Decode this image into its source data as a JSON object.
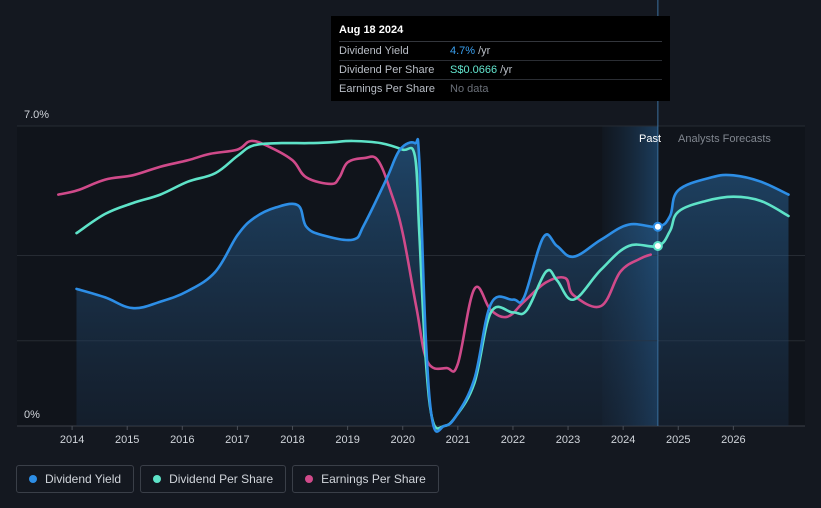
{
  "tooltip": {
    "date": "Aug 18 2024",
    "rows": [
      {
        "label": "Dividend Yield",
        "value": "4.7%",
        "unit": "/yr"
      },
      {
        "label": "Dividend Per Share",
        "value": "S$0.0666",
        "unit": "/yr"
      },
      {
        "label": "Earnings Per Share",
        "value": "No data",
        "unit": ""
      }
    ]
  },
  "regions": {
    "past": "Past",
    "forecast": "Analysts Forecasts"
  },
  "legend": [
    {
      "label": "Dividend Yield",
      "color": "#2d8ee6"
    },
    {
      "label": "Dividend Per Share",
      "color": "#5ee3c8"
    },
    {
      "label": "Earnings Per Share",
      "color": "#d04a8a"
    }
  ],
  "chart_data": {
    "type": "line",
    "y_tick_labels": [
      "7.0%",
      "0%"
    ],
    "ylim": [
      0,
      7.0
    ],
    "x_ticks": [
      "2014",
      "2015",
      "2016",
      "2017",
      "2018",
      "2019",
      "2020",
      "2021",
      "2022",
      "2023",
      "2024",
      "2025",
      "2026"
    ],
    "xlim": [
      2013.0,
      2027.3
    ],
    "forecast_start": 2024.63,
    "forecast_band_start": 2023.62,
    "grid": true,
    "series": [
      {
        "name": "Dividend Yield",
        "color": "#2d8ee6",
        "area": true,
        "points": [
          [
            2014.08,
            3.2
          ],
          [
            2014.6,
            3.0
          ],
          [
            2015.1,
            2.75
          ],
          [
            2015.6,
            2.9
          ],
          [
            2016.1,
            3.15
          ],
          [
            2016.6,
            3.6
          ],
          [
            2017.0,
            4.45
          ],
          [
            2017.3,
            4.85
          ],
          [
            2017.7,
            5.1
          ],
          [
            2018.1,
            5.15
          ],
          [
            2018.25,
            4.65
          ],
          [
            2018.55,
            4.45
          ],
          [
            2019.1,
            4.35
          ],
          [
            2019.3,
            4.7
          ],
          [
            2019.7,
            5.75
          ],
          [
            2019.95,
            6.45
          ],
          [
            2020.22,
            6.6
          ],
          [
            2020.3,
            6.2
          ],
          [
            2020.42,
            2.0
          ],
          [
            2020.55,
            0.05
          ],
          [
            2020.75,
            0.0
          ],
          [
            2020.95,
            0.2
          ],
          [
            2021.3,
            1.1
          ],
          [
            2021.6,
            2.85
          ],
          [
            2022.0,
            2.95
          ],
          [
            2022.2,
            3.0
          ],
          [
            2022.55,
            4.4
          ],
          [
            2022.8,
            4.2
          ],
          [
            2023.1,
            3.95
          ],
          [
            2023.6,
            4.35
          ],
          [
            2024.1,
            4.7
          ],
          [
            2024.63,
            4.65
          ],
          [
            2024.85,
            4.9
          ],
          [
            2025.0,
            5.5
          ],
          [
            2025.6,
            5.8
          ],
          [
            2026.0,
            5.85
          ],
          [
            2026.5,
            5.7
          ],
          [
            2027.0,
            5.4
          ]
        ]
      },
      {
        "name": "Dividend Per Share",
        "color": "#5ee3c8",
        "area": false,
        "points": [
          [
            2014.08,
            4.5
          ],
          [
            2014.6,
            4.95
          ],
          [
            2015.1,
            5.2
          ],
          [
            2015.6,
            5.4
          ],
          [
            2016.1,
            5.7
          ],
          [
            2016.6,
            5.9
          ],
          [
            2017.0,
            6.3
          ],
          [
            2017.3,
            6.55
          ],
          [
            2017.8,
            6.6
          ],
          [
            2018.3,
            6.6
          ],
          [
            2018.7,
            6.62
          ],
          [
            2019.1,
            6.65
          ],
          [
            2019.6,
            6.6
          ],
          [
            2020.0,
            6.45
          ],
          [
            2020.22,
            6.3
          ],
          [
            2020.3,
            4.5
          ],
          [
            2020.42,
            1.5
          ],
          [
            2020.55,
            0.1
          ],
          [
            2020.75,
            0.0
          ],
          [
            2020.95,
            0.2
          ],
          [
            2021.3,
            1.0
          ],
          [
            2021.6,
            2.65
          ],
          [
            2022.0,
            2.65
          ],
          [
            2022.25,
            2.7
          ],
          [
            2022.6,
            3.6
          ],
          [
            2022.8,
            3.4
          ],
          [
            2023.1,
            2.95
          ],
          [
            2023.6,
            3.65
          ],
          [
            2024.1,
            4.2
          ],
          [
            2024.63,
            4.2
          ],
          [
            2024.85,
            4.55
          ],
          [
            2025.0,
            5.0
          ],
          [
            2025.5,
            5.25
          ],
          [
            2026.0,
            5.35
          ],
          [
            2026.5,
            5.25
          ],
          [
            2027.0,
            4.9
          ]
        ]
      },
      {
        "name": "Earnings Per Share",
        "color": "#d04a8a",
        "area": false,
        "points": [
          [
            2013.75,
            5.4
          ],
          [
            2014.1,
            5.5
          ],
          [
            2014.6,
            5.75
          ],
          [
            2015.1,
            5.85
          ],
          [
            2015.6,
            6.05
          ],
          [
            2016.1,
            6.2
          ],
          [
            2016.5,
            6.35
          ],
          [
            2017.0,
            6.45
          ],
          [
            2017.25,
            6.65
          ],
          [
            2017.6,
            6.5
          ],
          [
            2018.0,
            6.2
          ],
          [
            2018.25,
            5.8
          ],
          [
            2018.7,
            5.65
          ],
          [
            2018.85,
            5.8
          ],
          [
            2019.0,
            6.15
          ],
          [
            2019.3,
            6.25
          ],
          [
            2019.55,
            6.2
          ],
          [
            2019.8,
            5.4
          ],
          [
            2020.0,
            4.5
          ],
          [
            2020.25,
            2.75
          ],
          [
            2020.45,
            1.5
          ],
          [
            2020.8,
            1.35
          ],
          [
            2021.0,
            1.45
          ],
          [
            2021.3,
            3.2
          ],
          [
            2021.6,
            2.7
          ],
          [
            2021.9,
            2.55
          ],
          [
            2022.2,
            2.9
          ],
          [
            2022.6,
            3.35
          ],
          [
            2022.95,
            3.45
          ],
          [
            2023.1,
            3.05
          ],
          [
            2023.6,
            2.8
          ],
          [
            2023.95,
            3.6
          ],
          [
            2024.3,
            3.9
          ],
          [
            2024.5,
            4.0
          ]
        ]
      }
    ]
  }
}
